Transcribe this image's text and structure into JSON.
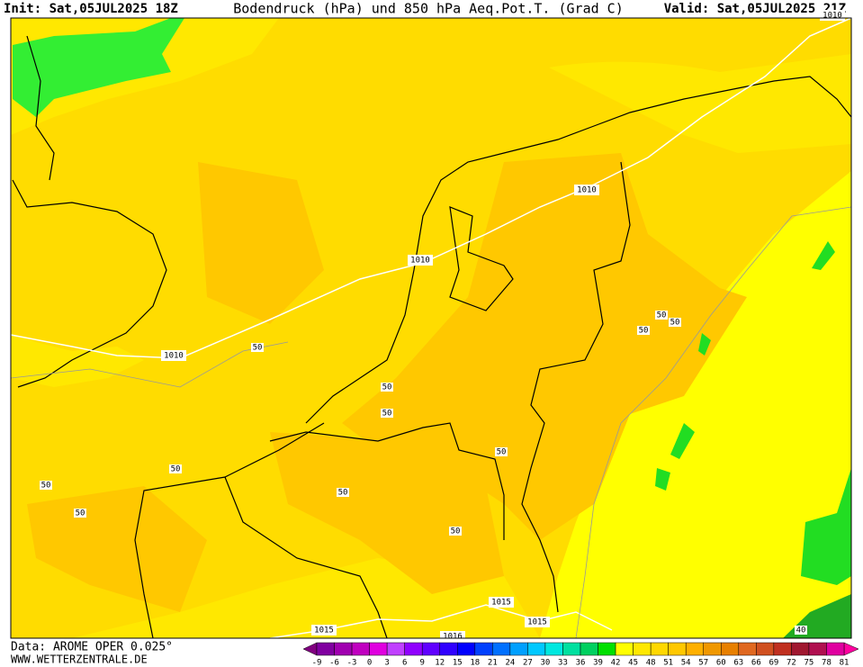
{
  "header": {
    "init": "Init: Sat,05JUL2025 18Z",
    "title": "Bodendruck (hPa) und 850 hPa Aeq.Pot.T. (Grad C)",
    "valid": "Valid: Sat,05JUL2025 21Z"
  },
  "footer": {
    "source": "Data: AROME OPER 0.025°",
    "site": "WWW.WETTERZENTRALE.DE"
  },
  "isobar_labels": [
    "1010",
    "1010",
    "1010",
    "1015",
    "1015",
    "1015",
    "1016",
    "1010"
  ],
  "theta_labels": [
    "50",
    "50",
    "50",
    "50",
    "50",
    "50",
    "50",
    "50",
    "50",
    "50",
    "50",
    "50",
    "40"
  ],
  "legend": {
    "labels": [
      -9,
      -6,
      -3,
      0,
      3,
      6,
      9,
      12,
      15,
      18,
      21,
      24,
      27,
      30,
      33,
      36,
      39,
      42,
      45,
      48,
      51,
      54,
      57,
      60,
      63,
      66,
      69,
      72,
      75,
      78,
      81
    ],
    "colors": [
      "#8000a0",
      "#a000b0",
      "#c000c0",
      "#e000e0",
      "#c040ff",
      "#9000ff",
      "#6000ff",
      "#3000ff",
      "#0000ff",
      "#0040ff",
      "#0070ff",
      "#00a0ff",
      "#00c8ff",
      "#00e8e0",
      "#00e0a0",
      "#00d060",
      "#00e000",
      "#ffff00",
      "#ffe800",
      "#ffd800",
      "#ffc800",
      "#ffb000",
      "#f09800",
      "#e88000",
      "#e06820",
      "#d05020",
      "#c03020",
      "#a01830",
      "#b01050",
      "#e000a0"
    ],
    "under_color": "#800080",
    "over_color": "#ff00a0"
  }
}
